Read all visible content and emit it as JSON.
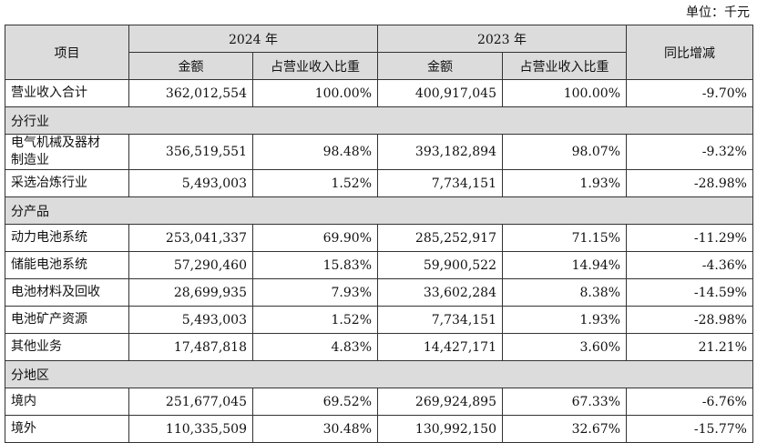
{
  "unit": "单位：千元",
  "header": {
    "item": "项目",
    "year_2024": "2024 年",
    "year_2023": "2023 年",
    "change": "同比增减",
    "sub": [
      "金额",
      "占营业收入比重",
      "金额",
      "占营业收入比重"
    ]
  },
  "rows": [
    {
      "label": "营业收入合计",
      "cells": [
        "362,012,554",
        "100.00%",
        "400,917,045",
        "100.00%",
        "-9.70%"
      ]
    },
    {
      "section": "分行业"
    },
    {
      "label": "电气机械及器材制造业",
      "cells": [
        "356,519,551",
        "98.48%",
        "393,182,894",
        "98.07%",
        "-9.32%"
      ]
    },
    {
      "label": "采选冶炼行业",
      "cells": [
        "5,493,003",
        "1.52%",
        "7,734,151",
        "1.93%",
        "-28.98%"
      ]
    },
    {
      "section": "分产品"
    },
    {
      "label": "动力电池系统",
      "cells": [
        "253,041,337",
        "69.90%",
        "285,252,917",
        "71.15%",
        "-11.29%"
      ]
    },
    {
      "label": "储能电池系统",
      "cells": [
        "57,290,460",
        "15.83%",
        "59,900,522",
        "14.94%",
        "-4.36%"
      ]
    },
    {
      "label": "电池材料及回收",
      "cells": [
        "28,699,935",
        "7.93%",
        "33,602,284",
        "8.38%",
        "-14.59%"
      ]
    },
    {
      "label": "电池矿产资源",
      "cells": [
        "5,493,003",
        "1.52%",
        "7,734,151",
        "1.93%",
        "-28.98%"
      ]
    },
    {
      "label": "其他业务",
      "cells": [
        "17,487,818",
        "4.83%",
        "14,427,171",
        "3.60%",
        "21.21%"
      ]
    },
    {
      "section": "分地区"
    },
    {
      "label": "境内",
      "cells": [
        "251,677,045",
        "69.52%",
        "269,924,895",
        "67.33%",
        "-6.76%"
      ]
    },
    {
      "label": "境外",
      "cells": [
        "110,335,509",
        "30.48%",
        "130,992,150",
        "32.67%",
        "-15.77%"
      ]
    }
  ]
}
